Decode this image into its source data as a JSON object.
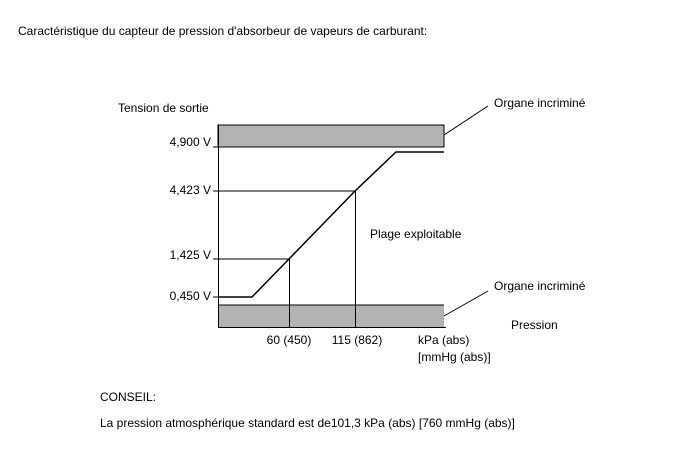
{
  "header": {
    "title": "Caractéristique du capteur de pression d'absorbeur de vapeurs de carburant:"
  },
  "diagram": {
    "y_axis_label": "Tension de sortie",
    "y_labels": [
      "4,900 V",
      "4,423 V",
      "1,425 V",
      "0,450 V"
    ],
    "x_labels": [
      "60 (450)",
      "115 (862)"
    ],
    "x_unit": [
      "kPa (abs)",
      "[mmHg (abs)]"
    ],
    "x_axis_label": "Pression",
    "operating_range": "Plage exploitable",
    "fault_labels": [
      "Organe incriminé",
      "Organe incriminé"
    ]
  },
  "note": {
    "heading": "CONSEIL:",
    "text": "La pression atmosphérique standard est de101,3 kPa (abs) [760 mmHg (abs)]"
  }
}
